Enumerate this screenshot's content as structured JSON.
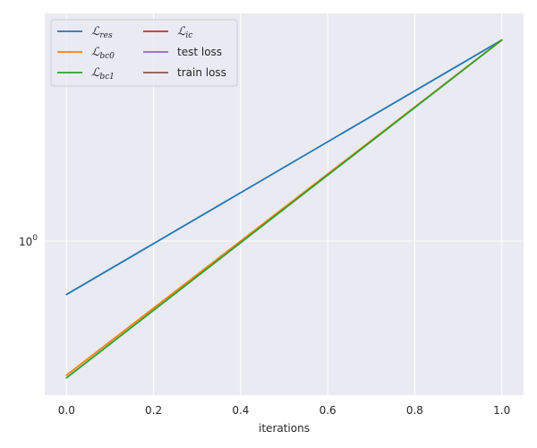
{
  "chart_data": {
    "type": "line",
    "xlabel": "iterations",
    "ylabel": "",
    "yscale": "log",
    "xlim": [
      -0.05,
      1.05
    ],
    "ylim": [
      0.42,
      3.6
    ],
    "xticks": [
      0.0,
      0.2,
      0.4,
      0.6,
      0.8,
      1.0
    ],
    "xtick_labels": [
      "0.0",
      "0.2",
      "0.4",
      "0.6",
      "0.8",
      "1.0"
    ],
    "yticks": [
      1.0
    ],
    "ytick_labels": [
      "10",
      "0"
    ],
    "grid": true,
    "legend_position": "top-left",
    "legend_columns": 2,
    "series": [
      {
        "name_base": "ℒ",
        "name_sub": "res",
        "color": "#1f77b4",
        "x": [
          0,
          1
        ],
        "y": [
          0.74,
          3.1
        ]
      },
      {
        "name_base": "ℒ",
        "name_sub": "bc0",
        "color": "#ff7f0e",
        "x": [
          0,
          1
        ],
        "y": [
          0.47,
          3.1
        ]
      },
      {
        "name_base": "ℒ",
        "name_sub": "bc1",
        "color": "#2ca02c",
        "x": [
          0,
          1
        ],
        "y": [
          0.463,
          3.1
        ]
      },
      {
        "name_base": "ℒ",
        "name_sub": "ic",
        "color": "#d62728",
        "x": [],
        "y": []
      },
      {
        "name": "test loss",
        "color": "#9467bd",
        "x": [],
        "y": []
      },
      {
        "name": "train loss",
        "color": "#8c564b",
        "x": [],
        "y": []
      }
    ]
  }
}
